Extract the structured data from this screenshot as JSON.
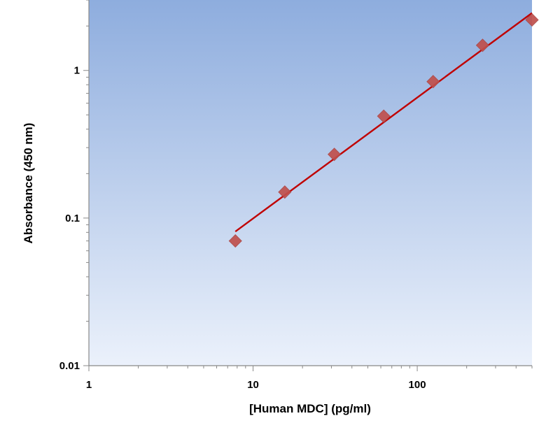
{
  "chart_data": {
    "type": "scatter",
    "title": "",
    "xlabel": "[Human MDC] (pg/ml)",
    "ylabel": "Absorbance (450 nm)",
    "x_scale": "log",
    "y_scale": "log",
    "xlim": [
      1,
      500
    ],
    "ylim": [
      0.01,
      3
    ],
    "x_ticks": [
      {
        "value": 1,
        "label": "1"
      },
      {
        "value": 10,
        "label": "10"
      },
      {
        "value": 100,
        "label": "100"
      }
    ],
    "y_ticks": [
      {
        "value": 0.01,
        "label": "0.01"
      },
      {
        "value": 0.1,
        "label": "0.1"
      },
      {
        "value": 1,
        "label": "1"
      }
    ],
    "grid": false,
    "legend": "none",
    "series": [
      {
        "kind": "points",
        "marker": "diamond",
        "color": "#c0504d",
        "x": [
          7.8,
          15.6,
          31.25,
          62.5,
          125,
          250,
          500
        ],
        "y": [
          0.07,
          0.15,
          0.27,
          0.49,
          0.84,
          1.48,
          2.2
        ]
      },
      {
        "kind": "fit-line",
        "color": "#c00000",
        "x": [
          7.8,
          500
        ],
        "y": [
          0.081,
          2.45
        ]
      }
    ],
    "colors": {
      "plot_bg_top": "#8eadde",
      "plot_bg_bottom": "#ebf1fb",
      "axis": "#888888"
    }
  }
}
